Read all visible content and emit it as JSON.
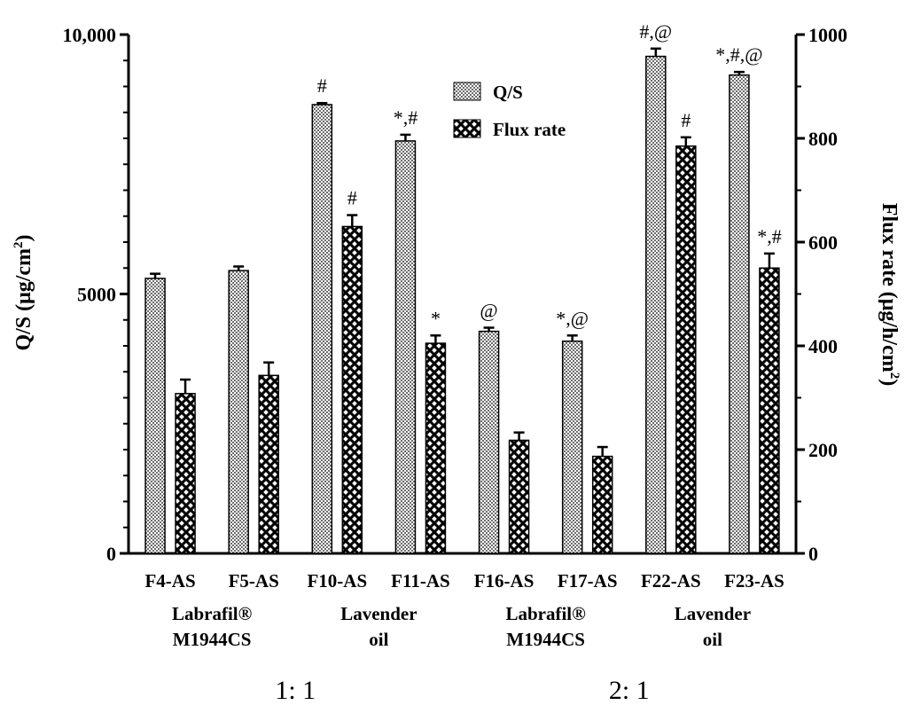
{
  "chart_data": {
    "type": "bar",
    "title": "",
    "categories": [
      "F4-AS",
      "F5-AS",
      "F10-AS",
      "F11-AS",
      "F16-AS",
      "F17-AS",
      "F22-AS",
      "F23-AS"
    ],
    "series": [
      {
        "name": "Q/S",
        "axis": "left",
        "pattern": "checkered",
        "values": [
          5300,
          5450,
          8650,
          7950,
          4280,
          4090,
          9580,
          9220
        ],
        "errors": [
          90,
          80,
          30,
          120,
          70,
          110,
          150,
          60
        ],
        "annotations": [
          "",
          "",
          "#",
          "*,#",
          "@",
          "*,@",
          "#,@",
          "*,#,@"
        ]
      },
      {
        "name": "Flux rate",
        "axis": "right",
        "pattern": "crosshatch",
        "values": [
          308,
          343,
          630,
          405,
          218,
          187,
          785,
          550
        ],
        "errors": [
          27,
          25,
          22,
          15,
          15,
          18,
          17,
          28
        ],
        "annotations": [
          "",
          "",
          "#",
          "*",
          "",
          "",
          "#",
          "*,#"
        ]
      }
    ],
    "y_left": {
      "label": "Q/S (μg/cm²)",
      "label_main": "Q/S (μg/cm",
      "label_sup": "2",
      "label_end": ")",
      "range": [
        0,
        10000
      ],
      "ticks": [
        0,
        5000,
        10000
      ],
      "tick_labels": [
        "0",
        "5000",
        "10,000"
      ]
    },
    "y_right": {
      "label": "Flux rate (μg/h/cm²)",
      "label_main": "Flux rate (μg/h/cm",
      "label_sup": "2",
      "label_end": ")",
      "range": [
        0,
        1000
      ],
      "ticks": [
        0,
        200,
        400,
        600,
        800,
        1000
      ],
      "tick_labels": [
        "0",
        "200",
        "400",
        "600",
        "800",
        "1000"
      ]
    },
    "group_labels": [
      {
        "lines": [
          "Labrafil®",
          "M1944CS"
        ],
        "categories": [
          "F4-AS",
          "F5-AS"
        ]
      },
      {
        "lines": [
          "Lavender",
          "oil"
        ],
        "categories": [
          "F10-AS",
          "F11-AS"
        ]
      },
      {
        "lines": [
          "Labrafil®",
          "M1944CS"
        ],
        "categories": [
          "F16-AS",
          "F17-AS"
        ]
      },
      {
        "lines": [
          "Lavender",
          "oil"
        ],
        "categories": [
          "F22-AS",
          "F23-AS"
        ]
      }
    ],
    "ratio_labels": [
      {
        "text": "1: 1",
        "categories": [
          "F4-AS",
          "F11-AS"
        ]
      },
      {
        "text": "2: 1",
        "categories": [
          "F16-AS",
          "F23-AS"
        ]
      }
    ],
    "legend": {
      "position": "top-center",
      "entries": [
        "Q/S",
        "Flux rate"
      ]
    },
    "grid": false
  }
}
